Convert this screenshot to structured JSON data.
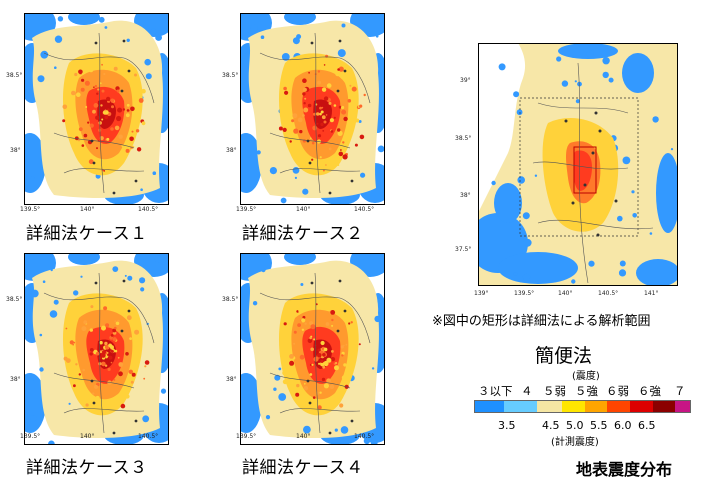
{
  "panels": [
    {
      "id": "case1",
      "label": "詳細法ケース１",
      "yticks": [
        "38.5°",
        "38°"
      ],
      "xticks": [
        "139.5°",
        "140°",
        "140.5°"
      ]
    },
    {
      "id": "case2",
      "label": "詳細法ケース２",
      "yticks": [
        "38.5°",
        "38°"
      ],
      "xticks": [
        "139.5°",
        "140°",
        "140.5°"
      ]
    },
    {
      "id": "case3",
      "label": "詳細法ケース３",
      "yticks": [
        "38.5°",
        "38°"
      ],
      "xticks": [
        "139.5°",
        "140°",
        "140.5°"
      ]
    },
    {
      "id": "case4",
      "label": "詳細法ケース４",
      "yticks": [
        "38.5°",
        "38°"
      ],
      "xticks": [
        "139.5°",
        "140°",
        "140.5°"
      ]
    }
  ],
  "simple_map": {
    "yticks": [
      "39°",
      "38.5°",
      "38°",
      "37.5°"
    ],
    "xticks": [
      "139°",
      "139.5°",
      "140°",
      "140.5°",
      "141°"
    ]
  },
  "note": "※図中の矩形は詳細法による解析範囲",
  "simple_title": "簡便法",
  "legend": {
    "shindo_title": "(震度)",
    "levels": [
      "３以下",
      "４",
      "５弱",
      "５強",
      "６弱",
      "６強",
      "７"
    ],
    "colors": [
      "#1e90ff",
      "#66ccff",
      "#f5e6a3",
      "#ffe600",
      "#ffa500",
      "#ff4500",
      "#dd0000",
      "#8b0000",
      "#c71585"
    ],
    "values": [
      "3.5",
      "4.5",
      "5.0",
      "5.5",
      "6.0",
      "6.5"
    ],
    "measured_title": "(計測震度)"
  },
  "figure_title": "地表震度分布"
}
